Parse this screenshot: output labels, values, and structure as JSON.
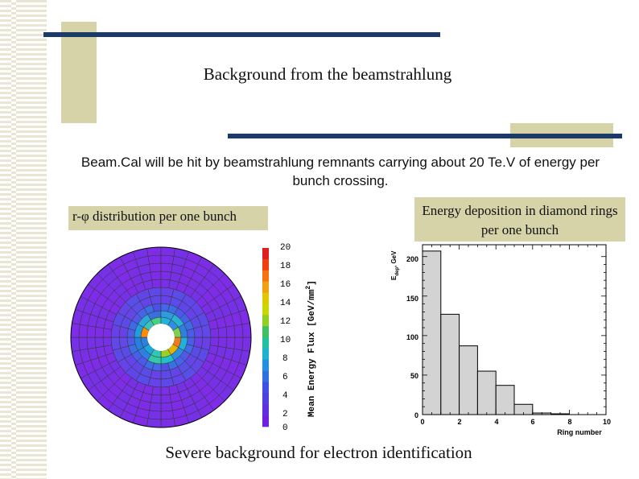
{
  "slide": {
    "title": "Background from the beamstrahlung",
    "intro": "Beam.Cal will be hit by beamstrahlung remnants carrying about 20 Te.V of energy per bunch crossing.",
    "label_left": "r-φ distribution per one bunch",
    "label_right": "Energy deposition in diamond rings per one bunch",
    "footer": "Severe background for electron identification"
  },
  "colorbar": {
    "ticks": [
      "0",
      "2",
      "4",
      "6",
      "8",
      "10",
      "12",
      "14",
      "16",
      "18",
      "20"
    ],
    "label": "Mean Energy Flux [GeV/mm",
    "label_sup": "2",
    "label_end": "]"
  },
  "chart_data": {
    "type": "bar",
    "xlabel": "Ring number",
    "ylabel": "E",
    "ylabel_sub": "dep",
    "ylabel_unit": ", GeV",
    "xlim": [
      0,
      10
    ],
    "ylim": [
      0,
      215
    ],
    "x_ticks": [
      "0",
      "2",
      "4",
      "6",
      "8",
      "10"
    ],
    "y_ticks": [
      "0",
      "50",
      "100",
      "150",
      "200"
    ],
    "bins": [
      {
        "x0": 0,
        "x1": 1,
        "value": 207
      },
      {
        "x0": 1,
        "x1": 2,
        "value": 127
      },
      {
        "x0": 2,
        "x1": 3,
        "value": 87
      },
      {
        "x0": 3,
        "x1": 4,
        "value": 55
      },
      {
        "x0": 4,
        "x1": 5,
        "value": 37
      },
      {
        "x0": 5,
        "x1": 6,
        "value": 13
      },
      {
        "x0": 6,
        "x1": 7,
        "value": 2
      },
      {
        "x0": 7,
        "x1": 8,
        "value": 1
      }
    ]
  }
}
